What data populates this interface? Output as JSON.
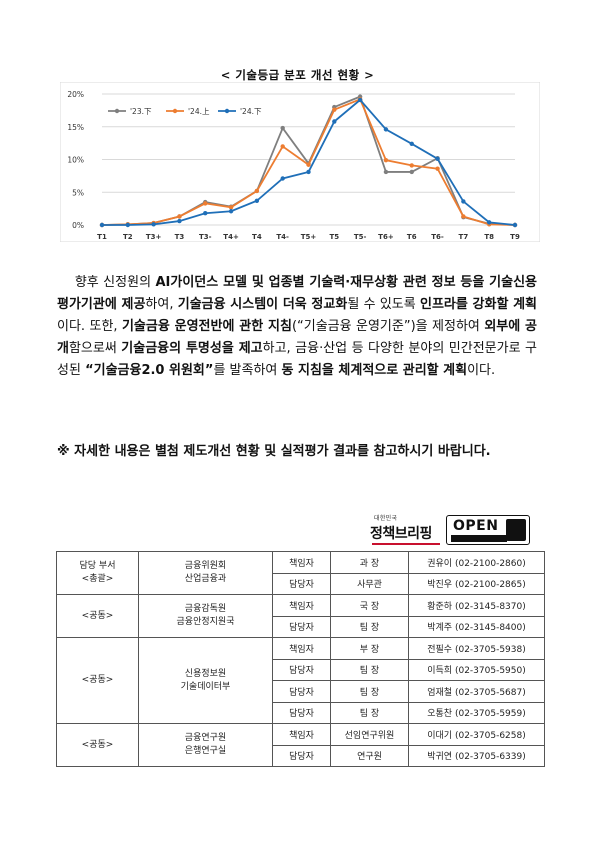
{
  "chart_title": "< 기술등급 분포 개선 현황 >",
  "chart_data": {
    "type": "line",
    "title": "< 기술등급 분포 개선 현황 >",
    "categories": [
      "T1",
      "T2",
      "T3+",
      "T3",
      "T3-",
      "T4+",
      "T4",
      "T4-",
      "T5+",
      "T5",
      "T5-",
      "T6+",
      "T6",
      "T6-",
      "T7",
      "T8",
      "T9"
    ],
    "y_tick_labels": [
      "0%",
      "5%",
      "10%",
      "15%",
      "20%"
    ],
    "ylim": [
      0,
      20
    ],
    "grid": true,
    "legend_position": "top-left",
    "series": [
      {
        "name": "'23.下",
        "color": "#7f7f7f",
        "values": [
          0,
          0.1,
          0.3,
          1.3,
          3.5,
          2.8,
          5.2,
          14.8,
          9.4,
          18.0,
          19.6,
          8.1,
          8.1,
          10.2,
          1.2,
          0.2,
          0
        ]
      },
      {
        "name": "'24.上",
        "color": "#ed7d31",
        "values": [
          0,
          0.1,
          0.3,
          1.3,
          3.3,
          2.7,
          5.2,
          12.0,
          9.2,
          17.6,
          19.2,
          9.9,
          9.1,
          8.6,
          1.3,
          0.1,
          0
        ]
      },
      {
        "name": "'24.下",
        "color": "#1f6fb8",
        "values": [
          0,
          0,
          0.1,
          0.6,
          1.8,
          2.1,
          3.7,
          7.1,
          8.1,
          15.8,
          19.1,
          14.6,
          12.4,
          10.1,
          3.6,
          0.4,
          0
        ]
      }
    ]
  },
  "paragraph": [
    {
      "text": "향후 신정원의 ",
      "bold": false
    },
    {
      "text": "AI가이던스 모델 및 업종별 기술력·재무상황 관련 정보 등을 기술신용평가기관에 제공",
      "bold": true
    },
    {
      "text": "하여, ",
      "bold": false
    },
    {
      "text": "기술금융 시스템이 더욱 정교화",
      "bold": true
    },
    {
      "text": "될 수 있도록 ",
      "bold": false
    },
    {
      "text": "인프라를 강화할 계획",
      "bold": true
    },
    {
      "text": "이다. 또한, ",
      "bold": false
    },
    {
      "text": "기술금융 운영전반에 관한 지침",
      "bold": true
    },
    {
      "text": "(“기술금융 운영기준”)을 제정하여 ",
      "bold": false
    },
    {
      "text": "외부에 공개",
      "bold": true
    },
    {
      "text": "함으로써 ",
      "bold": false
    },
    {
      "text": "기술금융의 투명성을 제고",
      "bold": true
    },
    {
      "text": "하고, 금융·산업 등 다양한 분야의 민간전문가로 구성된 ",
      "bold": false
    },
    {
      "text": "“기술금융2.0 위원회”",
      "bold": true
    },
    {
      "text": "를 발족하여 ",
      "bold": false
    },
    {
      "text": "동 지침을 체계적으로 관리할 계획",
      "bold": true
    },
    {
      "text": "이다.",
      "bold": false
    }
  ],
  "note": "※ 자세한 내용은 별첨 제도개선 현황 및 실적평가 결과를 참고하시기 바랍니다.",
  "logos": {
    "brief_small": "대한민국",
    "brief_main": "정책브리핑",
    "open": "OPEN"
  },
  "contacts": {
    "groups": [
      {
        "role": "담당 부서\n<총괄>",
        "dept": "금융위원회\n산업금융과",
        "rows": [
          {
            "type": "책임자",
            "title": "과 장",
            "name_phone": "권유이 (02-2100-2860)"
          },
          {
            "type": "담당자",
            "title": "사무관",
            "name_phone": "박진우 (02-2100-2865)"
          }
        ]
      },
      {
        "role": "<공동>",
        "dept": "금융감독원\n금융안정지원국",
        "rows": [
          {
            "type": "책임자",
            "title": "국 장",
            "name_phone": "황준하 (02-3145-8370)"
          },
          {
            "type": "담당자",
            "title": "팀 장",
            "name_phone": "박계주 (02-3145-8400)"
          }
        ]
      },
      {
        "role": "<공동>",
        "dept": "신용정보원\n기술데이터부",
        "rows": [
          {
            "type": "책임자",
            "title": "부 장",
            "name_phone": "전필수 (02-3705-5938)"
          },
          {
            "type": "담당자",
            "title": "팀 장",
            "name_phone": "이득희 (02-3705-5950)"
          },
          {
            "type": "담당자",
            "title": "팀 장",
            "name_phone": "엄재철 (02-3705-5687)"
          },
          {
            "type": "담당자",
            "title": "팀 장",
            "name_phone": "오통찬 (02-3705-5959)"
          }
        ]
      },
      {
        "role": "<공동>",
        "dept": "금융연구원\n은행연구실",
        "rows": [
          {
            "type": "책임자",
            "title": "선임연구위원",
            "name_phone": "이대기 (02-3705-6258)"
          },
          {
            "type": "담당자",
            "title": "연구원",
            "name_phone": "박귀연 (02-3705-6339)"
          }
        ]
      }
    ]
  }
}
